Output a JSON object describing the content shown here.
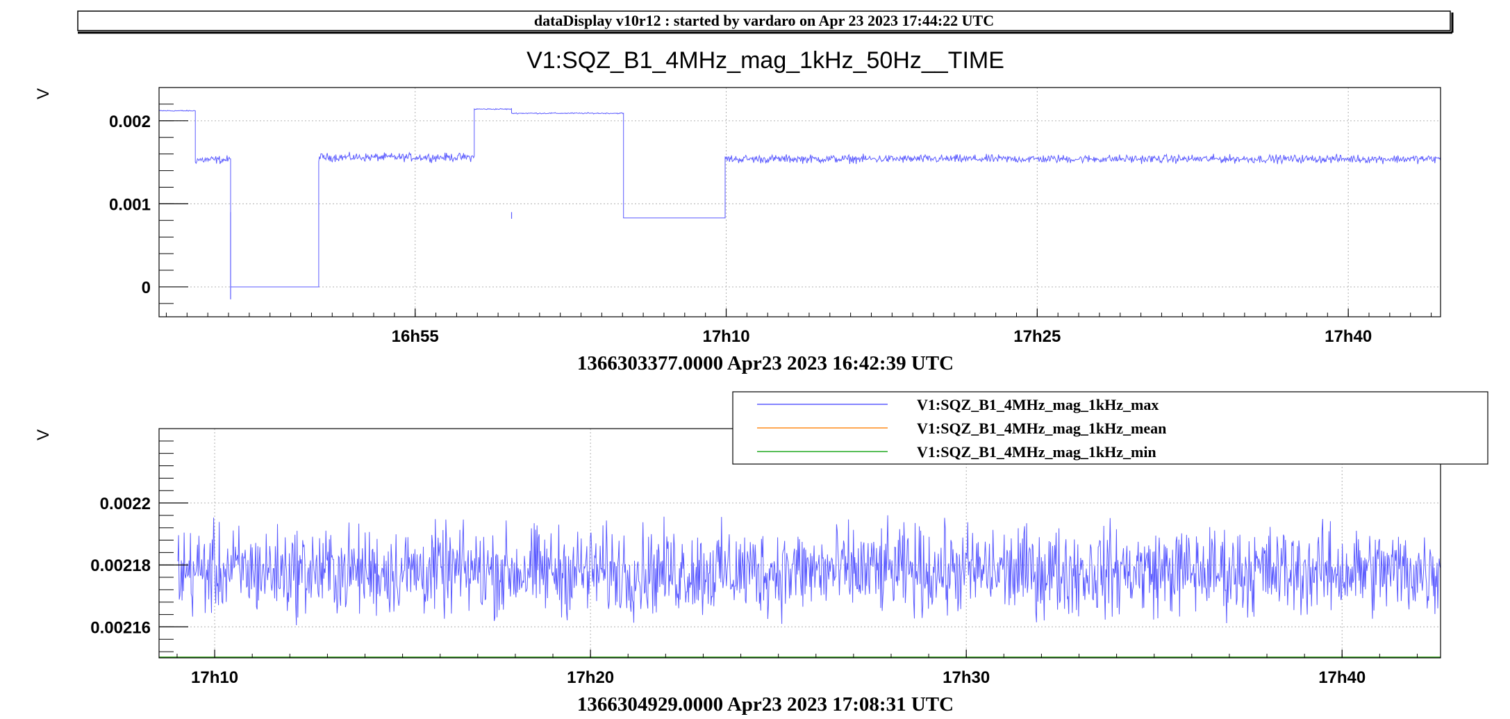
{
  "header": {
    "title": "dataDisplay v10r12 : started by vardaro on Apr 23 2023 17:44:22 UTC"
  },
  "chart_data": [
    {
      "type": "line",
      "title": "V1:SQZ_B1_4MHz_mag_1kHz_50Hz__TIME",
      "ylabel": "V",
      "xlabel": "1366303377.0000 Apr23 2023 16:42:39 UTC",
      "x_unit": "minutes since 16:42:39 UTC",
      "xlim": [
        0,
        61.8
      ],
      "ylim": [
        -0.00036,
        0.0024
      ],
      "y_ticks": [
        {
          "value": 0,
          "label": "0"
        },
        {
          "value": 0.001,
          "label": "0.001"
        },
        {
          "value": 0.002,
          "label": "0.002"
        }
      ],
      "x_ticks": [
        {
          "value": 12.35,
          "label": "16h55"
        },
        {
          "value": 27.35,
          "label": "17h10"
        },
        {
          "value": 42.35,
          "label": "17h25"
        },
        {
          "value": 57.35,
          "label": "17h40"
        }
      ],
      "grid": true,
      "series": [
        {
          "color": "#5a5aff",
          "segments": [
            {
              "x0": 0.0,
              "x1": 1.75,
              "level": 0.00212,
              "noise": 1e-05
            },
            {
              "x0": 1.75,
              "x1": 3.45,
              "level": 0.00153,
              "noise": 7e-05
            },
            {
              "x0": 3.45,
              "x1": 7.7,
              "level": 0.0,
              "noise": 0.0
            },
            {
              "x0": 7.7,
              "x1": 15.2,
              "level": 0.00156,
              "noise": 7e-05
            },
            {
              "x0": 15.2,
              "x1": 17.0,
              "level": 0.00214,
              "noise": 1e-05
            },
            {
              "x0": 17.0,
              "x1": 22.4,
              "level": 0.00209,
              "noise": 1e-05
            },
            {
              "x0": 22.4,
              "x1": 27.3,
              "level": 0.00083,
              "noise": 0.0
            },
            {
              "x0": 27.3,
              "x1": 61.8,
              "level": 0.00154,
              "noise": 7e-05
            }
          ],
          "spikes": [
            {
              "x": 3.45,
              "y": -0.00015
            },
            {
              "x": 17.0,
              "y": 0.00082
            }
          ]
        }
      ]
    },
    {
      "type": "line",
      "title": "",
      "ylabel": "V",
      "xlabel": "1366304929.0000 Apr23 2023 17:08:31 UTC",
      "x_unit": "minutes since 17:08:31 UTC",
      "xlim": [
        0,
        34.1
      ],
      "ylim": [
        0.00215,
        0.002224
      ],
      "y_ticks": [
        {
          "value": 0.00216,
          "label": "0.00216"
        },
        {
          "value": 0.00218,
          "label": "0.00218"
        },
        {
          "value": 0.0022,
          "label": "0.0022"
        }
      ],
      "x_ticks": [
        {
          "value": 1.48,
          "label": "17h10"
        },
        {
          "value": 11.48,
          "label": "17h20"
        },
        {
          "value": 21.48,
          "label": "17h30"
        },
        {
          "value": 31.48,
          "label": "17h40"
        }
      ],
      "grid": true,
      "legend": {
        "position": "top-right",
        "entries": [
          {
            "name": "V1:SQZ_B1_4MHz_mag_1kHz_max",
            "color": "#5a5aff"
          },
          {
            "name": "V1:SQZ_B1_4MHz_mag_1kHz_mean",
            "color": "#ff8c1a"
          },
          {
            "name": "V1:SQZ_B1_4MHz_mag_1kHz_min",
            "color": "#22aa22"
          }
        ]
      },
      "series": [
        {
          "name": "V1:SQZ_B1_4MHz_mag_1kHz_max",
          "color": "#5a5aff",
          "mean_value": 0.002178,
          "noise": 1.2e-05
        },
        {
          "name": "V1:SQZ_B1_4MHz_mag_1kHz_mean",
          "color": "#ff8c1a",
          "constant_value": 0.00215
        },
        {
          "name": "V1:SQZ_B1_4MHz_mag_1kHz_min",
          "color": "#22aa22",
          "constant_value": 0.00215
        }
      ]
    }
  ]
}
